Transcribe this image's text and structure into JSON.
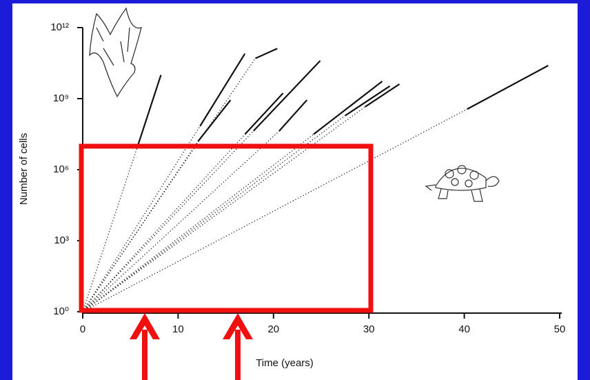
{
  "chart_data": {
    "type": "line",
    "x_label": "Time (years)",
    "y_label": "Number of cells",
    "log_y": true,
    "xlim": [
      0,
      50
    ],
    "xticks": [
      0,
      10,
      20,
      30,
      40,
      50
    ],
    "ylim": [
      1,
      1000000000000
    ],
    "yticks": [
      {
        "value": 1,
        "label": "10⁰"
      },
      {
        "value": 1000,
        "label": "10³"
      },
      {
        "value": 1000000,
        "label": "10⁶"
      },
      {
        "value": 1000000000,
        "label": "10⁹"
      },
      {
        "value": 1000000000000,
        "label": "10¹²"
      }
    ],
    "series": [
      {
        "color": "#111111",
        "x": [
          0,
          5.8,
          8.2
        ],
        "values": [
          1,
          11000000,
          10000000000
        ]
      },
      {
        "color": "#111111",
        "x": [
          0,
          12.3,
          17.0
        ],
        "values": [
          1,
          69000000,
          79000000000
        ]
      },
      {
        "color": "#111111",
        "x": [
          0,
          12.1,
          15.5
        ],
        "values": [
          1,
          16000000,
          870000000
        ]
      },
      {
        "color": "#111111",
        "x": [
          0,
          18.1,
          20.4
        ],
        "values": [
          1,
          50000000000,
          130000000000
        ]
      },
      {
        "color": "#111111",
        "x": [
          0,
          17.0,
          21.0
        ],
        "values": [
          1,
          31000000,
          1700000000
        ]
      },
      {
        "color": "#111111",
        "x": [
          0,
          17.9,
          24.9
        ],
        "values": [
          1,
          43000000,
          40000000000
        ]
      },
      {
        "color": "#111111",
        "x": [
          0,
          20.6,
          23.5
        ],
        "values": [
          1,
          43000000,
          870000000
        ]
      },
      {
        "color": "#111111",
        "x": [
          0,
          24.2,
          31.4
        ],
        "values": [
          1,
          31000000,
          5400000000
        ]
      },
      {
        "color": "#111111",
        "x": [
          0,
          27.5,
          32.2
        ],
        "values": [
          1,
          190000000,
          3400000000
        ]
      },
      {
        "color": "#111111",
        "x": [
          0,
          29.6,
          33.2
        ],
        "values": [
          1,
          450000000,
          4100000000
        ]
      },
      {
        "color": "#111111",
        "x": [
          0,
          40.3,
          48.8
        ],
        "values": [
          1,
          360000000,
          25000000000
        ]
      }
    ]
  }
}
